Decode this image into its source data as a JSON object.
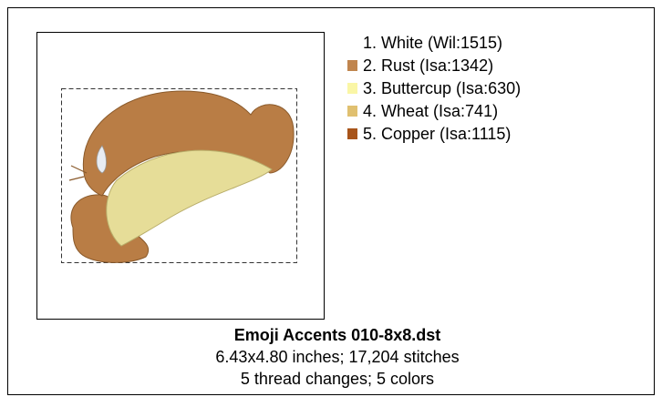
{
  "design": {
    "colors": [
      {
        "label": "1.  White (Wil:1515)",
        "color": "#ffffff"
      },
      {
        "label": "2.  Rust (Isa:1342)",
        "color": "#c0854e"
      },
      {
        "label": "3.  Buttercup (Isa:630)",
        "color": "#faf6a6"
      },
      {
        "label": "4.  Wheat (Isa:741)",
        "color": "#e0c070"
      },
      {
        "label": "5.  Copper (Isa:1115)",
        "color": "#a8541a"
      }
    ],
    "name": "Emoji Accents 010-8x8.dst",
    "size_line": "6.43x4.80 inches; 17,204 stitches",
    "changes_line": "5 thread changes; 5 colors"
  }
}
